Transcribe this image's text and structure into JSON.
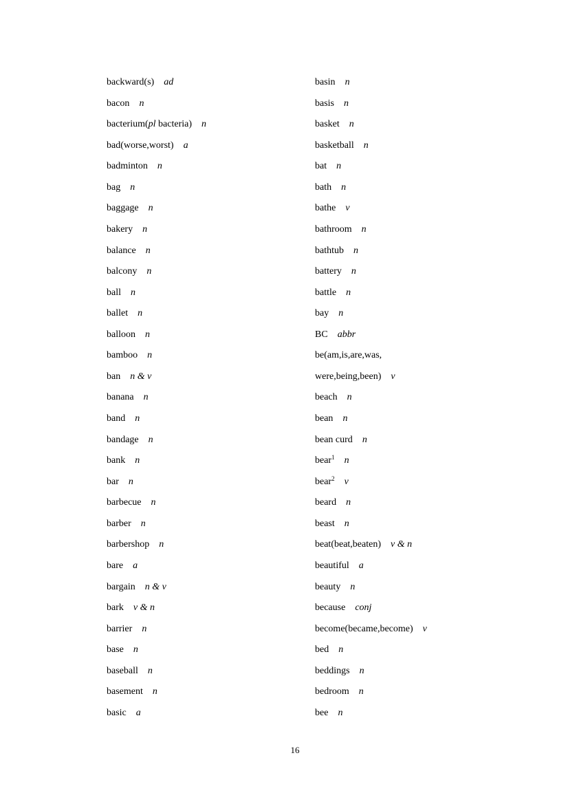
{
  "page_number": "16",
  "left_column": [
    {
      "word": "backward(s)",
      "pos": "ad"
    },
    {
      "word": "bacon",
      "pos": "n"
    },
    {
      "word": "bacterium(",
      "word_italic": "pl",
      "word_after": " bacteria)",
      "pos": "n"
    },
    {
      "word": "bad(worse,worst)",
      "pos": "a"
    },
    {
      "word": "badminton",
      "pos": "n"
    },
    {
      "word": "bag",
      "pos": "n"
    },
    {
      "word": "baggage",
      "pos": "n"
    },
    {
      "word": "bakery",
      "pos": "n"
    },
    {
      "word": "balance",
      "pos": "n"
    },
    {
      "word": "balcony",
      "pos": "n"
    },
    {
      "word": "ball",
      "pos": "n"
    },
    {
      "word": "ballet",
      "pos": "n"
    },
    {
      "word": "balloon",
      "pos": "n"
    },
    {
      "word": "bamboo",
      "pos": "n"
    },
    {
      "word": "ban",
      "pos": "n & v"
    },
    {
      "word": "banana",
      "pos": "n"
    },
    {
      "word": "band",
      "pos": "n"
    },
    {
      "word": "bandage",
      "pos": "n"
    },
    {
      "word": "bank",
      "pos": "n"
    },
    {
      "word": "bar",
      "pos": "n"
    },
    {
      "word": "barbecue",
      "pos": "n"
    },
    {
      "word": "barber",
      "pos": "n"
    },
    {
      "word": "barbershop",
      "pos": "n"
    },
    {
      "word": "bare",
      "pos": "a"
    },
    {
      "word": "bargain",
      "pos": "n & v"
    },
    {
      "word": "bark",
      "pos": "v & n"
    },
    {
      "word": "barrier",
      "pos": "n"
    },
    {
      "word": "base",
      "pos": "n"
    },
    {
      "word": "baseball",
      "pos": "n"
    },
    {
      "word": "basement",
      "pos": "n"
    },
    {
      "word": "basic",
      "pos": "a"
    }
  ],
  "right_column": [
    {
      "word": "basin",
      "pos": "n"
    },
    {
      "word": "basis",
      "pos": "n"
    },
    {
      "word": "basket",
      "pos": "n"
    },
    {
      "word": "basketball",
      "pos": "n"
    },
    {
      "word": "bat",
      "pos": "n"
    },
    {
      "word": "bath",
      "pos": "n"
    },
    {
      "word": "bathe",
      "pos": "v"
    },
    {
      "word": "bathroom",
      "pos": "n"
    },
    {
      "word": "bathtub",
      "pos": "n"
    },
    {
      "word": "battery",
      "pos": "n"
    },
    {
      "word": "battle",
      "pos": "n"
    },
    {
      "word": "bay",
      "pos": "n"
    },
    {
      "word": "BC",
      "pos": "abbr"
    },
    {
      "word": "be(am,is,are,was,"
    },
    {
      "word": "were,being,been)",
      "pos": "v"
    },
    {
      "word": "beach",
      "pos": "n"
    },
    {
      "word": "bean",
      "pos": "n"
    },
    {
      "word": "bean curd",
      "pos": "n"
    },
    {
      "word": "bear",
      "sup": "1",
      "pos": "n"
    },
    {
      "word": "bear",
      "sup": "2",
      "pos": "v"
    },
    {
      "word": "beard",
      "pos": "n"
    },
    {
      "word": "beast",
      "pos": "n"
    },
    {
      "word": "beat(beat,beaten)",
      "pos": "v & n"
    },
    {
      "word": "beautiful",
      "pos": "a"
    },
    {
      "word": "beauty",
      "pos": "n"
    },
    {
      "word": "because",
      "pos": "conj"
    },
    {
      "word": "become(became,become)",
      "pos": "v"
    },
    {
      "word": "bed",
      "pos": "n"
    },
    {
      "word": "beddings",
      "pos": "n"
    },
    {
      "word": "bedroom",
      "pos": "n"
    },
    {
      "word": "bee",
      "pos": "n"
    }
  ]
}
